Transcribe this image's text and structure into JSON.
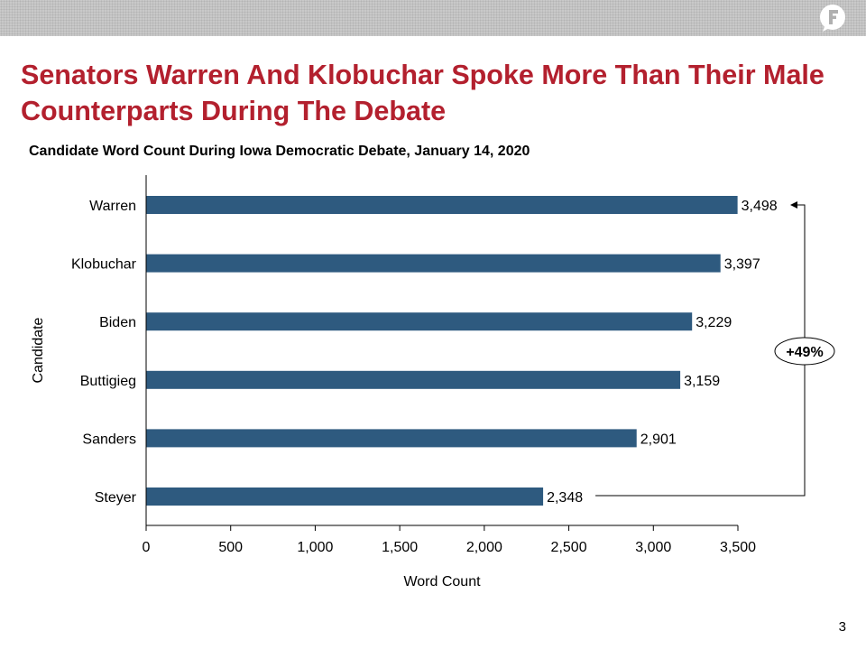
{
  "header": {
    "logo_icon": "brand-logo-icon"
  },
  "title": "Senators Warren And Klobuchar Spoke More Than Their Male Counterparts During The Debate",
  "page_number": "3",
  "chart_data": {
    "type": "bar",
    "orientation": "horizontal",
    "title": "Candidate Word Count During Iowa Democratic Debate, January 14, 2020",
    "xlabel": "Word Count",
    "ylabel": "Candidate",
    "categories": [
      "Warren",
      "Klobuchar",
      "Biden",
      "Buttigieg",
      "Sanders",
      "Steyer"
    ],
    "values": [
      3498,
      3397,
      3229,
      3159,
      2901,
      2348
    ],
    "value_labels": [
      "3,498",
      "3,397",
      "3,229",
      "3,159",
      "2,901",
      "2,348"
    ],
    "xlim": [
      0,
      3500
    ],
    "xticks": [
      0,
      500,
      1000,
      1500,
      2000,
      2500,
      3000,
      3500
    ],
    "xtick_labels": [
      "0",
      "500",
      "1,000",
      "1,500",
      "2,000",
      "2,500",
      "3,000",
      "3,500"
    ],
    "grid": false,
    "bar_color": "#2e5a7f",
    "annotation": {
      "text": "+49%",
      "from": "Steyer",
      "to": "Warren"
    }
  }
}
